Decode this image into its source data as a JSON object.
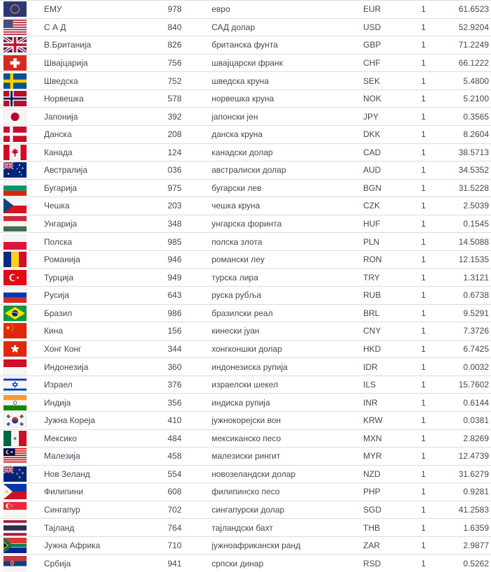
{
  "table": {
    "unit_default": "1",
    "rows": [
      {
        "flag": "eu-flag",
        "country": "ЕМУ",
        "numeric_code": "978",
        "currency_name": "евро",
        "currency_code": "EUR",
        "unit": "1",
        "rate": "61.6523"
      },
      {
        "flag": "us-flag",
        "country": "С А Д",
        "numeric_code": "840",
        "currency_name": "САД долар",
        "currency_code": "USD",
        "unit": "1",
        "rate": "52.9204"
      },
      {
        "flag": "uk-flag",
        "country": "В.Британија",
        "numeric_code": "826",
        "currency_name": "британска фунта",
        "currency_code": "GBP",
        "unit": "1",
        "rate": "71.2249"
      },
      {
        "flag": "switzerland-flag",
        "country": "Швајцарија",
        "numeric_code": "756",
        "currency_name": "швајцарски франк",
        "currency_code": "CHF",
        "unit": "1",
        "rate": "66.1222"
      },
      {
        "flag": "sweden-flag",
        "country": "Шведска",
        "numeric_code": "752",
        "currency_name": "шведска круна",
        "currency_code": "SEK",
        "unit": "1",
        "rate": "5.4800"
      },
      {
        "flag": "norway-flag",
        "country": "Норвешка",
        "numeric_code": "578",
        "currency_name": "норвешка круна",
        "currency_code": "NOK",
        "unit": "1",
        "rate": "5.2100"
      },
      {
        "flag": "japan-flag",
        "country": "Јапонија",
        "numeric_code": "392",
        "currency_name": "јапонски јен",
        "currency_code": "JPY",
        "unit": "1",
        "rate": "0.3565"
      },
      {
        "flag": "denmark-flag",
        "country": "Данска",
        "numeric_code": "208",
        "currency_name": "данска круна",
        "currency_code": "DKK",
        "unit": "1",
        "rate": "8.2604"
      },
      {
        "flag": "canada-flag",
        "country": "Канада",
        "numeric_code": "124",
        "currency_name": "канадски долар",
        "currency_code": "CAD",
        "unit": "1",
        "rate": "38.5713"
      },
      {
        "flag": "australia-flag",
        "country": "Австралија",
        "numeric_code": "036",
        "currency_name": "австралиски долар",
        "currency_code": "AUD",
        "unit": "1",
        "rate": "34.5352"
      },
      {
        "flag": "bulgaria-flag",
        "country": "Бугарија",
        "numeric_code": "975",
        "currency_name": "бугарски лев",
        "currency_code": "BGN",
        "unit": "1",
        "rate": "31.5228"
      },
      {
        "flag": "czechia-flag",
        "country": "Чешка",
        "numeric_code": "203",
        "currency_name": "чешка круна",
        "currency_code": "CZK",
        "unit": "1",
        "rate": "2.5039"
      },
      {
        "flag": "hungary-flag",
        "country": "Унгарија",
        "numeric_code": "348",
        "currency_name": "унгарска форинта",
        "currency_code": "HUF",
        "unit": "1",
        "rate": "0.1545"
      },
      {
        "flag": "poland-flag",
        "country": "Полска",
        "numeric_code": "985",
        "currency_name": "полска злота",
        "currency_code": "PLN",
        "unit": "1",
        "rate": "14.5088"
      },
      {
        "flag": "romania-flag",
        "country": "Романија",
        "numeric_code": "946",
        "currency_name": "романски леу",
        "currency_code": "RON",
        "unit": "1",
        "rate": "12.1535"
      },
      {
        "flag": "turkey-flag",
        "country": "Турција",
        "numeric_code": "949",
        "currency_name": "турска лира",
        "currency_code": "TRY",
        "unit": "1",
        "rate": "1.3121"
      },
      {
        "flag": "russia-flag",
        "country": "Русија",
        "numeric_code": "643",
        "currency_name": "руска рубља",
        "currency_code": "RUB",
        "unit": "1",
        "rate": "0.6738"
      },
      {
        "flag": "brazil-flag",
        "country": "Бразил",
        "numeric_code": "986",
        "currency_name": "бразилски реал",
        "currency_code": "BRL",
        "unit": "1",
        "rate": "9.5291"
      },
      {
        "flag": "china-flag",
        "country": "Кина",
        "numeric_code": "156",
        "currency_name": "кинески јуан",
        "currency_code": "CNY",
        "unit": "1",
        "rate": "7.3726"
      },
      {
        "flag": "hongkong-flag",
        "country": "Хонг Конг",
        "numeric_code": "344",
        "currency_name": "хонгконшки долар",
        "currency_code": "HKD",
        "unit": "1",
        "rate": "6.7425"
      },
      {
        "flag": "indonesia-flag",
        "country": "Индонезија",
        "numeric_code": "360",
        "currency_name": "индонезиска рупија",
        "currency_code": "IDR",
        "unit": "1",
        "rate": "0.0032"
      },
      {
        "flag": "israel-flag",
        "country": "Израел",
        "numeric_code": "376",
        "currency_name": "израелски шекел",
        "currency_code": "ILS",
        "unit": "1",
        "rate": "15.7602"
      },
      {
        "flag": "india-flag",
        "country": "Индија",
        "numeric_code": "356",
        "currency_name": "индиска рупија",
        "currency_code": "INR",
        "unit": "1",
        "rate": "0.6144"
      },
      {
        "flag": "southkorea-flag",
        "country": "Јужна Кореја",
        "numeric_code": "410",
        "currency_name": "јужнокорејски вон",
        "currency_code": "KRW",
        "unit": "1",
        "rate": "0.0381"
      },
      {
        "flag": "mexico-flag",
        "country": "Мексико",
        "numeric_code": "484",
        "currency_name": "мексиканско песо",
        "currency_code": "MXN",
        "unit": "1",
        "rate": "2.8269"
      },
      {
        "flag": "malaysia-flag",
        "country": "Малезија",
        "numeric_code": "458",
        "currency_name": "малезиски рингит",
        "currency_code": "MYR",
        "unit": "1",
        "rate": "12.4739"
      },
      {
        "flag": "newzealand-flag",
        "country": "Нов Зеланд",
        "numeric_code": "554",
        "currency_name": "новозеландски долар",
        "currency_code": "NZD",
        "unit": "1",
        "rate": "31.6279"
      },
      {
        "flag": "philippines-flag",
        "country": "Филипини",
        "numeric_code": "608",
        "currency_name": "филипинско песо",
        "currency_code": "PHP",
        "unit": "1",
        "rate": "0.9281"
      },
      {
        "flag": "singapore-flag",
        "country": "Сингапур",
        "numeric_code": "702",
        "currency_name": "сингапурски долар",
        "currency_code": "SGD",
        "unit": "1",
        "rate": "41.2583"
      },
      {
        "flag": "thailand-flag",
        "country": "Тајланд",
        "numeric_code": "764",
        "currency_name": "тајландски бахт",
        "currency_code": "THB",
        "unit": "1",
        "rate": "1.6359"
      },
      {
        "flag": "southafrica-flag",
        "country": "Јужна Африка",
        "numeric_code": "710",
        "currency_name": "јужноафрикански ранд",
        "currency_code": "ZAR",
        "unit": "1",
        "rate": "2.9877"
      },
      {
        "flag": "serbia-flag",
        "country": "Србија",
        "numeric_code": "941",
        "currency_name": "српски динар",
        "currency_code": "RSD",
        "unit": "1",
        "rate": "0.5262"
      }
    ]
  },
  "colors": {
    "text": "#404a54",
    "row_border": "#dbdbdb",
    "background": "#ffffff"
  }
}
